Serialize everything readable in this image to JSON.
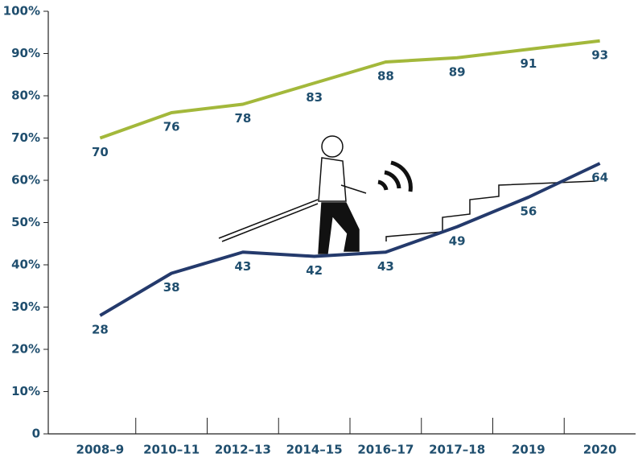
{
  "chart_data": {
    "type": "line",
    "categories": [
      "2008–9",
      "2010–11",
      "2012–13",
      "2014–15",
      "2016–17",
      "2017–18",
      "2019",
      "2020"
    ],
    "series": [
      {
        "color": "#a3b83b",
        "values": [
          70,
          76,
          78,
          83,
          88,
          89,
          91,
          93
        ]
      },
      {
        "color": "#243a6c",
        "values": [
          28,
          38,
          43,
          42,
          43,
          49,
          56,
          64
        ]
      }
    ],
    "ylim": [
      0,
      100
    ],
    "yticks": [
      0,
      {
        "value": 10,
        "label": "10%"
      },
      {
        "value": 20,
        "label": "20%"
      },
      {
        "value": 30,
        "label": "30%"
      },
      {
        "value": 40,
        "label": "40%"
      },
      {
        "value": 50,
        "label": "50%"
      },
      {
        "value": 60,
        "label": "60%"
      },
      {
        "value": 70,
        "label": "70%"
      },
      {
        "value": 80,
        "label": "80%"
      },
      {
        "value": 90,
        "label": "90%"
      },
      {
        "value": 100,
        "label": "100%"
      }
    ],
    "grid": false
  }
}
